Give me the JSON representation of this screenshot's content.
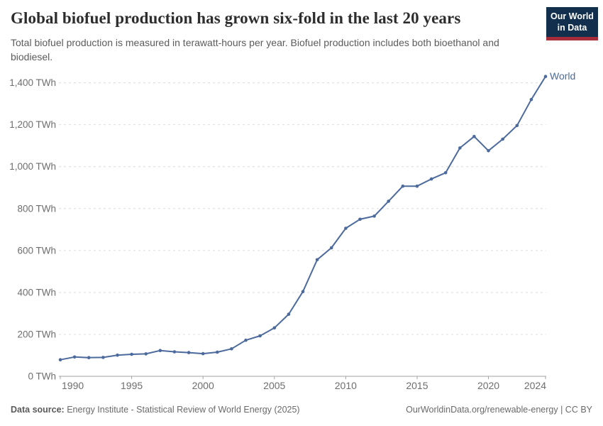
{
  "header": {
    "title": "Global biofuel production has grown six-fold in the last 20 years",
    "subtitle": "Total biofuel production is measured in terawatt-hours per year. Biofuel production includes both bioethanol and biodiesel.",
    "logo": {
      "line1": "Our World",
      "line2": "in Data"
    }
  },
  "chart_data": {
    "type": "line",
    "title": "Global biofuel production has grown six-fold in the last 20 years",
    "xlabel": "",
    "ylabel": "",
    "unit": "TWh",
    "xlim": [
      1990,
      2024
    ],
    "ylim": [
      0,
      1400
    ],
    "x_ticks": [
      1990,
      1995,
      2000,
      2005,
      2010,
      2015,
      2020,
      2024
    ],
    "y_ticks": [
      0,
      200,
      400,
      600,
      800,
      1000,
      1200,
      1400
    ],
    "y_tick_suffix": " TWh",
    "grid": "horizontal-dashed",
    "legend_position": "end-of-line-label",
    "x": [
      1990,
      1991,
      1992,
      1993,
      1994,
      1995,
      1996,
      1997,
      1998,
      1999,
      2000,
      2001,
      2002,
      2003,
      2004,
      2005,
      2006,
      2007,
      2008,
      2009,
      2010,
      2011,
      2012,
      2013,
      2014,
      2015,
      2016,
      2017,
      2018,
      2019,
      2020,
      2021,
      2022,
      2023,
      2024
    ],
    "series": [
      {
        "name": "World",
        "color": "#4c6a9c",
        "values": [
          79,
          92,
          89,
          90,
          101,
          105,
          107,
          123,
          117,
          113,
          108,
          115,
          131,
          172,
          193,
          231,
          296,
          404,
          556,
          613,
          706,
          749,
          764,
          835,
          907,
          907,
          941,
          971,
          1089,
          1144,
          1076,
          1131,
          1196,
          1320,
          1430
        ]
      }
    ]
  },
  "footer": {
    "source_label": "Data source:",
    "source_value": " Energy Institute - Statistical Review of World Energy (2025)",
    "link": "OurWorldinData.org/renewable-energy",
    "separator": " | ",
    "license": "CC BY"
  },
  "colors": {
    "line": "#4c6a9c",
    "grid": "#dcdcdc",
    "axis": "#a3a3a3",
    "tick_label": "#6e6e6e",
    "logo_bg": "#12304d",
    "logo_accent": "#a52c38"
  }
}
